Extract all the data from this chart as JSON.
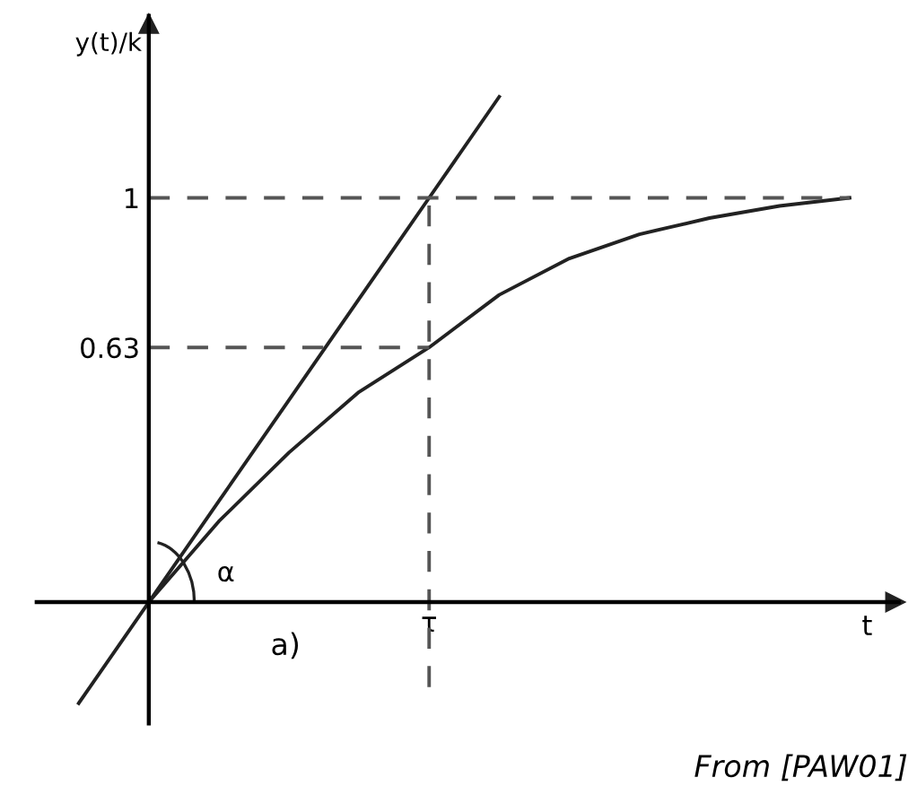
{
  "chart_data": {
    "type": "line",
    "xlabel": "t",
    "ylabel": "y(t)/k",
    "categories": [
      null,
      null,
      null,
      null,
      null,
      "τ",
      null,
      null,
      null,
      null,
      null,
      null
    ],
    "ylim": [
      -0.3,
      1.45
    ],
    "yticks": [
      0.63,
      1
    ],
    "grid": false,
    "legend": false,
    "marker": "none",
    "series": [
      {
        "color": "#222222",
        "line_style": "solid",
        "values": [
          null,
          0,
          0.2,
          0.37,
          0.52,
          0.63,
          0.76,
          0.85,
          0.91,
          0.95,
          0.98,
          1.0
        ]
      },
      {
        "color": "#222222",
        "line_style": "solid",
        "values": [
          -0.25,
          0,
          0.25,
          0.5,
          0.75,
          1,
          1.25,
          null,
          null,
          null,
          null,
          null
        ]
      },
      {
        "color": "#555555",
        "line_style": "dashed",
        "values": [
          null,
          1,
          1,
          1,
          1,
          1,
          1,
          1,
          1,
          1,
          1,
          1
        ]
      },
      {
        "color": "#555555",
        "line_style": "dashed",
        "values": [
          null,
          0.63,
          0.63,
          0.63,
          0.63,
          0.63,
          null,
          null,
          null,
          null,
          null,
          null
        ]
      }
    ],
    "ref_lines": [
      {
        "axis": "x",
        "value": "τ",
        "color": "#555555",
        "line_style": "dashed"
      }
    ],
    "annotations": [
      "α",
      "a)",
      "From [PAW01]"
    ]
  }
}
